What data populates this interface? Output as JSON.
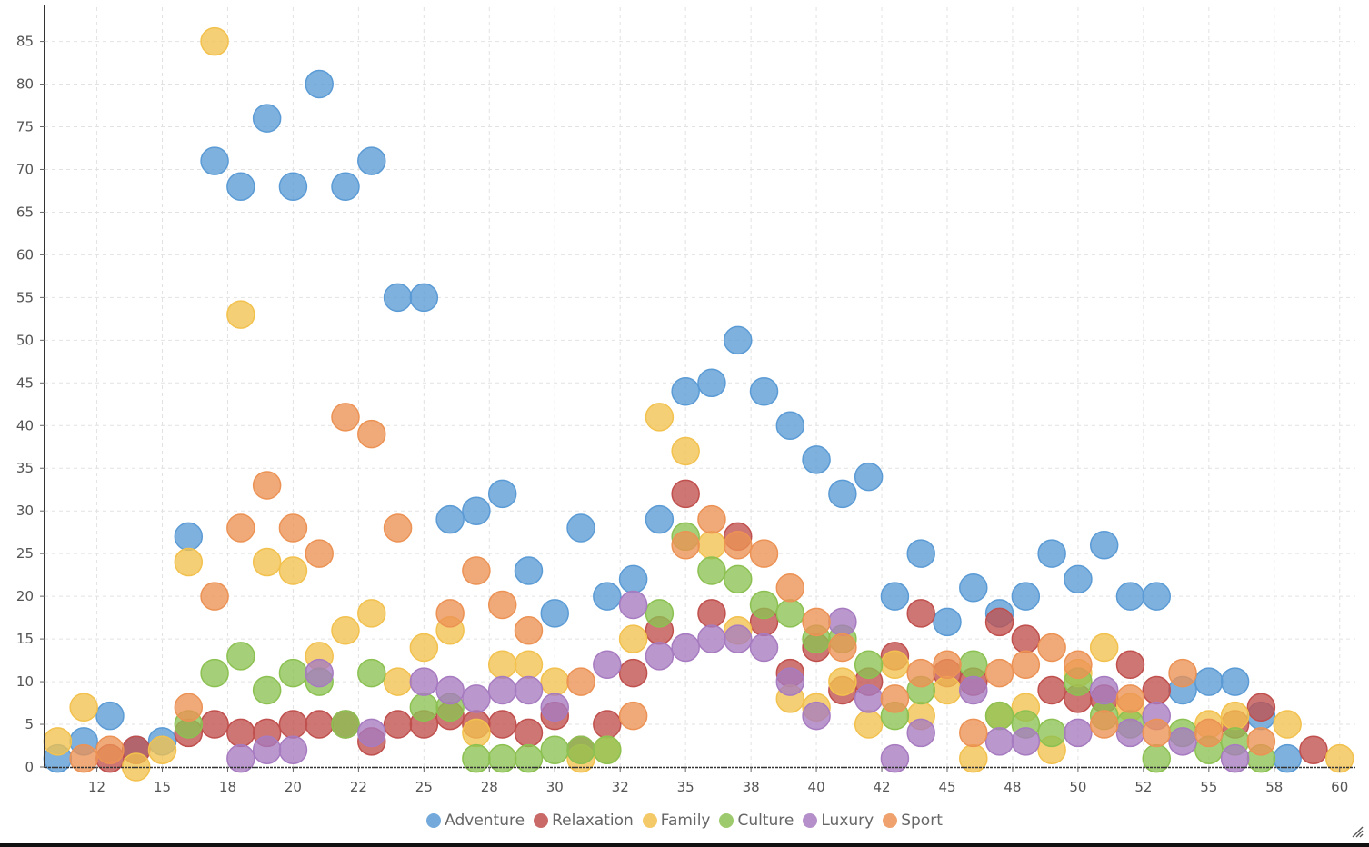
{
  "chart_data": {
    "type": "scatter",
    "title": "",
    "xlabel": "",
    "ylabel": "",
    "xlim": [
      10.5,
      60.6
    ],
    "ylim": [
      0,
      89
    ],
    "grid": true,
    "legend_position": "bottom",
    "x_ticks": [
      12.5,
      15,
      17.5,
      20,
      22.5,
      25,
      27.5,
      30,
      32.5,
      35,
      37.5,
      40,
      42.5,
      45,
      47.5,
      50,
      52.5,
      55,
      57.5,
      60
    ],
    "x_tick_labels": [
      "12",
      "15",
      "18",
      "20",
      "22",
      "25",
      "28",
      "30",
      "32",
      "35",
      "38",
      "40",
      "42",
      "45",
      "48",
      "50",
      "52",
      "55",
      "58",
      "60"
    ],
    "y_ticks": [
      0,
      5,
      10,
      15,
      20,
      25,
      30,
      35,
      40,
      45,
      50,
      55,
      60,
      65,
      70,
      75,
      80,
      85
    ],
    "y_tick_labels": [
      "0",
      "5",
      "10",
      "15",
      "20",
      "25",
      "30",
      "35",
      "40",
      "45",
      "50",
      "55",
      "60",
      "65",
      "70",
      "75",
      "80",
      "85"
    ],
    "x": [
      11,
      12,
      13,
      14,
      15,
      16,
      17,
      18,
      19,
      20,
      21,
      22,
      23,
      24,
      25,
      26,
      27,
      28,
      29,
      30,
      31,
      32,
      33,
      34,
      35,
      36,
      37,
      38,
      39,
      40,
      41,
      42,
      43,
      44,
      45,
      46,
      47,
      48,
      49,
      50,
      51,
      52,
      53,
      54,
      55,
      56,
      57,
      58,
      59,
      60
    ],
    "series": [
      {
        "name": "Adventure",
        "color": "#5b9bd5",
        "values": [
          1,
          3,
          6,
          2,
          3,
          27,
          71,
          68,
          76,
          68,
          80,
          68,
          71,
          55,
          55,
          29,
          30,
          32,
          23,
          18,
          28,
          20,
          22,
          29,
          44,
          45,
          50,
          44,
          40,
          36,
          32,
          34,
          20,
          25,
          17,
          21,
          18,
          20,
          25,
          22,
          26,
          20,
          20,
          9,
          10,
          10,
          6,
          1,
          null,
          null
        ]
      },
      {
        "name": "Relaxation",
        "color": "#c0504d",
        "values": [
          null,
          null,
          1,
          2,
          null,
          4,
          5,
          4,
          4,
          5,
          5,
          5,
          3,
          5,
          5,
          6,
          5,
          5,
          4,
          6,
          2,
          5,
          11,
          16,
          32,
          18,
          27,
          17,
          11,
          14,
          9,
          10,
          13,
          18,
          11,
          10,
          17,
          15,
          9,
          8,
          8,
          12,
          9,
          null,
          null,
          5,
          7,
          null,
          2,
          null
        ]
      },
      {
        "name": "Family",
        "color": "#f2c14e",
        "values": [
          3,
          7,
          null,
          0,
          2,
          24,
          85,
          53,
          24,
          23,
          13,
          16,
          18,
          10,
          14,
          16,
          4,
          12,
          12,
          10,
          1,
          2,
          15,
          41,
          37,
          26,
          16,
          null,
          8,
          7,
          10,
          5,
          12,
          6,
          9,
          1,
          6,
          7,
          2,
          11,
          14,
          7,
          null,
          null,
          5,
          6,
          null,
          5,
          null,
          1
        ]
      },
      {
        "name": "Culture",
        "color": "#8cc152",
        "values": [
          null,
          null,
          null,
          null,
          null,
          5,
          11,
          13,
          9,
          11,
          10,
          5,
          11,
          null,
          7,
          7,
          1,
          1,
          1,
          2,
          2,
          2,
          null,
          18,
          27,
          23,
          22,
          19,
          18,
          15,
          15,
          12,
          6,
          9,
          null,
          12,
          6,
          5,
          4,
          10,
          6,
          5,
          1,
          4,
          2,
          3,
          1,
          null,
          null,
          null
        ]
      },
      {
        "name": "Luxury",
        "color": "#a77bc0",
        "values": [
          null,
          null,
          null,
          null,
          null,
          null,
          null,
          1,
          2,
          2,
          11,
          null,
          4,
          null,
          10,
          9,
          8,
          9,
          9,
          7,
          null,
          12,
          19,
          13,
          14,
          15,
          15,
          14,
          10,
          6,
          17,
          8,
          1,
          4,
          null,
          9,
          3,
          3,
          null,
          4,
          9,
          4,
          6,
          3,
          null,
          1,
          null,
          null,
          null,
          null
        ]
      },
      {
        "name": "Sport",
        "color": "#ec9254",
        "values": [
          null,
          1,
          2,
          null,
          null,
          7,
          20,
          28,
          33,
          28,
          25,
          41,
          39,
          28,
          null,
          18,
          23,
          19,
          16,
          null,
          10,
          null,
          6,
          null,
          26,
          29,
          26,
          25,
          21,
          17,
          14,
          null,
          8,
          11,
          12,
          4,
          11,
          12,
          14,
          12,
          5,
          8,
          4,
          11,
          4,
          null,
          3,
          null,
          null,
          null
        ]
      }
    ]
  }
}
